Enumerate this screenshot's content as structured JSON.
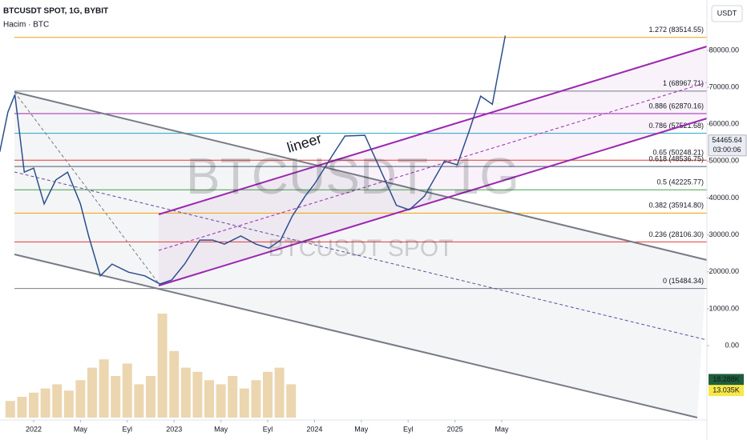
{
  "header": {
    "symbol": "BTCUSDT SPOT, 1G, BYBIT",
    "volume_label": "Hacim · BTC",
    "currency_button": "USDT",
    "watermark": "BTCUSDT, 1G",
    "watermark_sub": "BTCUSDT SPOT",
    "annotation": "lineer"
  },
  "chart_data": {
    "type": "line",
    "x": [
      -2.9,
      -2.2,
      -1.6,
      -0.8,
      0,
      0.9,
      1.9,
      2.9,
      4,
      4.7,
      5.7,
      6.7,
      8.1,
      9.5,
      10.8,
      11.8,
      12.9,
      14.2,
      15.3,
      16.3,
      17.7,
      19,
      20.1,
      21.1,
      22.1,
      23.2,
      24,
      25.5,
      26.6,
      28.3,
      29.3,
      31,
      32.1,
      33.4,
      35.1,
      36.2,
      37.2,
      38.2,
      39.2,
      40.3
    ],
    "series": [
      {
        "color": "#2b4f8c",
        "values": [
          52500,
          63300,
          68000,
          47000,
          48100,
          38400,
          44900,
          47000,
          38400,
          29700,
          18900,
          22100,
          19900,
          18900,
          16700,
          17800,
          22100,
          28600,
          28600,
          27500,
          29700,
          27500,
          26400,
          28600,
          35100,
          40500,
          43800,
          51400,
          56800,
          57000,
          50000,
          38000,
          36800,
          40500,
          50000,
          49000,
          58000,
          67600,
          65400,
          84000
        ]
      }
    ],
    "volume": {
      "color": "#e3c48e",
      "x": [
        -2,
        -1,
        0,
        1,
        2,
        3,
        4,
        5,
        6,
        7,
        8,
        9,
        10,
        11,
        12,
        13,
        14,
        15,
        16,
        17,
        18,
        19,
        20,
        21,
        22
      ],
      "values": [
        8,
        10,
        12,
        14,
        16,
        13,
        18,
        24,
        28,
        20,
        26,
        16,
        20,
        50,
        32,
        24,
        22,
        18,
        16,
        20,
        14,
        18,
        22,
        24,
        16
      ]
    },
    "xlim": [
      -2.877,
      57.534
    ],
    "xticks": [
      {
        "value": 0,
        "label": "2022"
      },
      {
        "value": 4,
        "label": "May"
      },
      {
        "value": 8,
        "label": "Eyl"
      },
      {
        "value": 12,
        "label": "2023"
      },
      {
        "value": 16,
        "label": "May"
      },
      {
        "value": 20,
        "label": "Eyl"
      },
      {
        "value": 24,
        "label": "2024"
      },
      {
        "value": 28,
        "label": "May"
      },
      {
        "value": 32,
        "label": "Eyl"
      },
      {
        "value": 36,
        "label": "2025"
      },
      {
        "value": 40,
        "label": "May"
      }
    ],
    "ylim": [
      -20150,
      93650
    ],
    "yticks": [
      {
        "value": 0,
        "label": "0.00"
      },
      {
        "value": 10000,
        "label": "10000.00"
      },
      {
        "value": 20000,
        "label": "20000.00"
      },
      {
        "value": 30000,
        "label": "30000.00"
      },
      {
        "value": 40000,
        "label": "40000.00"
      },
      {
        "value": 50000,
        "label": "50000.00"
      },
      {
        "value": 60000,
        "label": "60000.00"
      },
      {
        "value": 70000,
        "label": "70000.00"
      },
      {
        "value": 80000,
        "label": "80000.00"
      }
    ],
    "fib_levels": [
      {
        "label": "1.272 (83514.55)",
        "value": 83514.55,
        "color": "#f0a21f"
      },
      {
        "label": "1 (68967.71)",
        "value": 68967.71,
        "color": "#787b86"
      },
      {
        "label": "0.886 (62870.16)",
        "value": 62870.16,
        "color": "#9c27b0"
      },
      {
        "label": "0.786 (57521.68)",
        "value": 57521.68,
        "color": "#26a6c6"
      },
      {
        "label": "0.65 (50248.21)",
        "value": 50248.21,
        "color": "#e53935"
      },
      {
        "label": "0.618 (48536.75)",
        "value": 48536.75,
        "color": "#4e5b6e"
      },
      {
        "label": "0.5 (42225.77)",
        "value": 42225.77,
        "color": "#43a047"
      },
      {
        "label": "0.382 (35914.80)",
        "value": 35914.8,
        "color": "#f59f00"
      },
      {
        "label": "0.236 (28106.30)",
        "value": 28106.3,
        "color": "#e53935"
      },
      {
        "label": "0 (15484.34)",
        "value": 15484.34,
        "color": "#787b86"
      }
    ],
    "last_price": {
      "value": 54465.64,
      "countdown": "03:00:06"
    },
    "volume_labels": [
      {
        "label": "18.288K",
        "value": 18.288,
        "color": "#1e5e3a"
      },
      {
        "label": "13.035K",
        "value": 13.035,
        "color": "#f6e84a"
      }
    ]
  }
}
